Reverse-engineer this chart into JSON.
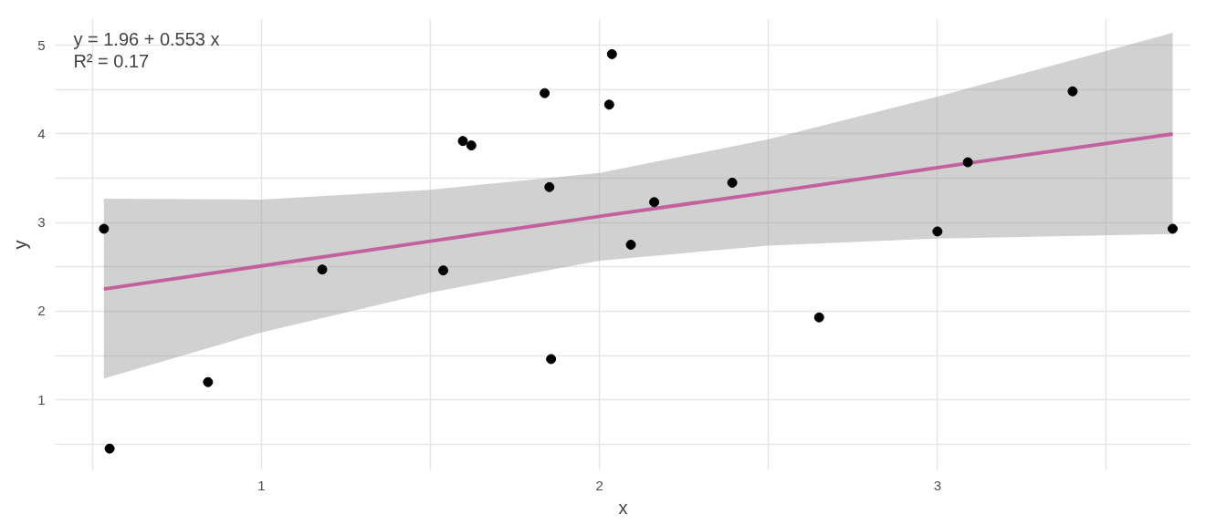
{
  "chart_data": {
    "type": "scatter",
    "xlabel": "x",
    "ylabel": "y",
    "annotations": [
      "y = 1.96 + 0.553 x",
      "R² = 0.17"
    ],
    "xlim": [
      0.39,
      3.75
    ],
    "ylim": [
      0.2,
      5.3
    ],
    "xticks": [
      {
        "value": 0.5,
        "label": null
      },
      1,
      {
        "value": 1.5,
        "label": null
      },
      2,
      {
        "value": 2.5,
        "label": null
      },
      3,
      {
        "value": 3.5,
        "label": null
      }
    ],
    "yticks": [
      {
        "value": 0.5,
        "label": null
      },
      1,
      {
        "value": 1.5,
        "label": null
      },
      2,
      {
        "value": 2.5,
        "label": null
      },
      3,
      {
        "value": 3.5,
        "label": null
      },
      4,
      {
        "value": 4.5,
        "label": null
      },
      5
    ],
    "grid": true,
    "series": [
      {
        "type": "line",
        "color": "#c2619e",
        "x": [
          0.534,
          1.0,
          1.5,
          2.0,
          2.5,
          3.0,
          3.696
        ],
        "values": [
          2.25,
          2.51,
          2.79,
          3.07,
          3.34,
          3.62,
          4.0
        ],
        "lower": [
          1.24,
          1.76,
          2.21,
          2.57,
          2.74,
          2.82,
          2.87
        ],
        "upper": [
          3.27,
          3.26,
          3.37,
          3.56,
          3.94,
          4.42,
          5.14
        ]
      },
      {
        "color": "#000000",
        "marker": "circle",
        "x": [
          0.534,
          0.551,
          0.842,
          1.18,
          1.538,
          1.596,
          1.621,
          1.838,
          1.852,
          1.857,
          2.029,
          2.037,
          2.093,
          2.162,
          2.393,
          2.65,
          3.0,
          3.09,
          3.4,
          3.696
        ],
        "values": [
          2.93,
          0.45,
          1.2,
          2.47,
          2.46,
          3.92,
          3.87,
          4.46,
          3.4,
          1.46,
          4.33,
          4.9,
          2.75,
          3.23,
          3.45,
          1.93,
          2.9,
          3.68,
          4.48,
          2.93
        ]
      }
    ]
  }
}
